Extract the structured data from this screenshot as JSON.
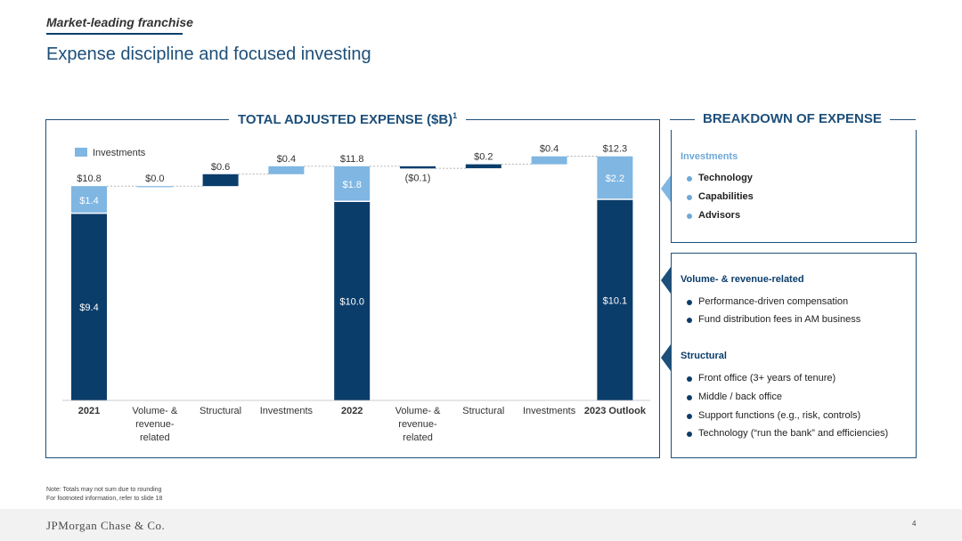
{
  "header": {
    "kicker": "Market-leading franchise",
    "title": "Expense discipline and focused investing"
  },
  "chart_heading": {
    "text": "TOTAL ADJUSTED EXPENSE ($B)",
    "footnote_mark": "1"
  },
  "breakdown_heading": "BREAKDOWN OF EXPENSE",
  "colors": {
    "dark_navy": "#0b3d6b",
    "light_blue": "#7fb6e2",
    "heading_blue": "#1d4f7a",
    "investments_blue": "#6ea8d8"
  },
  "chart_data": {
    "type": "bar",
    "subtype": "waterfall",
    "title": "TOTAL ADJUSTED EXPENSE ($B)",
    "legend": {
      "label": "Investments",
      "placement": "top-left"
    },
    "categories": [
      "2021",
      "Volume- & revenue-related",
      "Structural",
      "Investments",
      "2022",
      "Volume- & revenue-related",
      "Structural",
      "Investments",
      "2023 Outlook"
    ],
    "category_lines": [
      [
        "2021"
      ],
      [
        "Volume- &",
        "revenue-",
        "related"
      ],
      [
        "Structural"
      ],
      [
        "Investments"
      ],
      [
        "2022"
      ],
      [
        "Volume- &",
        "revenue-",
        "related"
      ],
      [
        "Structural"
      ],
      [
        "Investments"
      ],
      [
        "2023 Outlook"
      ]
    ],
    "bold_categories": [
      0,
      4,
      8
    ],
    "totals": [
      {
        "index": 0,
        "base": 9.4,
        "investments": 1.4,
        "total": 10.8,
        "base_label": "$9.4",
        "investments_label": "$1.4",
        "total_label": "$10.8"
      },
      {
        "index": 4,
        "base": 10.0,
        "investments": 1.8,
        "total": 11.8,
        "base_label": "$10.0",
        "investments_label": "$1.8",
        "total_label": "$11.8"
      },
      {
        "index": 8,
        "base": 10.1,
        "investments": 2.2,
        "total": 12.3,
        "base_label": "$10.1",
        "investments_label": "$2.2",
        "total_label": "$12.3"
      }
    ],
    "changes": [
      {
        "index": 1,
        "start": 10.8,
        "value": 0.0,
        "label": "$0.0",
        "color": "light"
      },
      {
        "index": 2,
        "start": 10.8,
        "value": 0.6,
        "label": "$0.6",
        "color": "dark"
      },
      {
        "index": 3,
        "start": 11.4,
        "value": 0.4,
        "label": "$0.4",
        "color": "light"
      },
      {
        "index": 5,
        "start": 11.8,
        "value": -0.1,
        "label": "($0.1)",
        "color": "dark"
      },
      {
        "index": 6,
        "start": 11.7,
        "value": 0.2,
        "label": "$0.2",
        "color": "dark"
      },
      {
        "index": 7,
        "start": 11.9,
        "value": 0.4,
        "label": "$0.4",
        "color": "light"
      }
    ],
    "ylim": [
      0,
      13
    ]
  },
  "breakdown": {
    "investments": {
      "heading": "Investments",
      "items": [
        "Technology",
        "Capabilities",
        "Advisors"
      ]
    },
    "volume": {
      "heading": "Volume- & revenue-related",
      "items": [
        "Performance-driven compensation",
        "Fund distribution fees in AM business"
      ]
    },
    "structural": {
      "heading": "Structural",
      "items": [
        "Front office (3+ years of tenure)",
        "Middle / back office",
        "Support functions (e.g., risk, controls)",
        "Technology (“run the bank” and efficiencies)"
      ]
    }
  },
  "footnotes": [
    "Note: Totals may not sum due to rounding",
    "For footnoted information, refer to slide 18"
  ],
  "footer": {
    "logo": "JPMorgan Chase & Co.",
    "page_number": "4"
  }
}
